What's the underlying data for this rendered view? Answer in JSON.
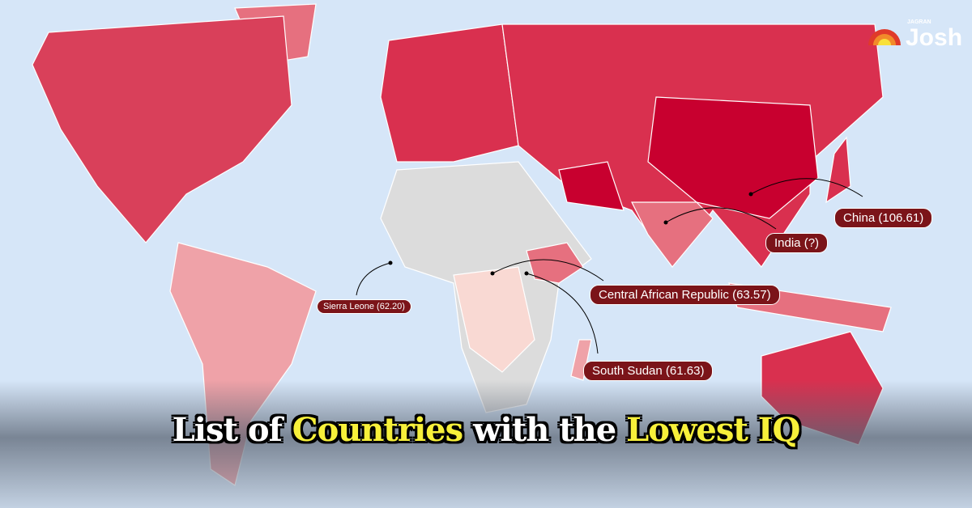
{
  "logo": {
    "sub": "JAGRAN",
    "brand": "Josh"
  },
  "title": {
    "part1": "List of",
    "part2": "Countries",
    "part3": "with the",
    "part4": "Lowest IQ"
  },
  "labels": [
    {
      "country": "China",
      "text": "China (106.61)"
    },
    {
      "country": "India",
      "text": "India (?)"
    },
    {
      "country": "Central African Republic",
      "text": "Central African Republic (63.57)"
    },
    {
      "country": "Sierra Leone",
      "text": "Sierra Leone (62.20)"
    },
    {
      "country": "South Sudan",
      "text": "South Sudan (61.63)"
    }
  ],
  "colors": {
    "ocean": "#d6e6f8",
    "highest": "#c8002f",
    "high": "#d9304f",
    "mid": "#e6707f",
    "low": "#efa2a8",
    "lowest": "#f9d9d3",
    "nodata": "#dcdcdc",
    "label_bg": "#7b1419",
    "title_highlight": "#f7f03a"
  }
}
